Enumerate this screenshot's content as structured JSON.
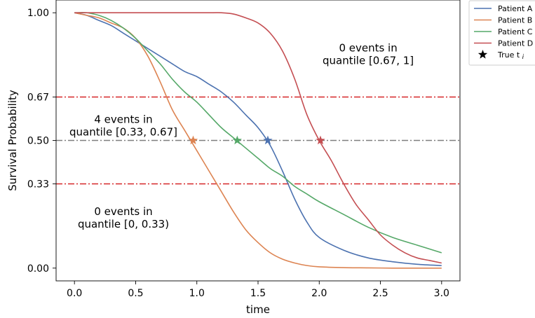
{
  "chart_data": {
    "type": "line",
    "xlabel": "time",
    "ylabel": "Survival Probability",
    "xlim": [
      -0.15,
      3.15
    ],
    "ylim": [
      -0.05,
      1.05
    ],
    "x_ticks": [
      "0.0",
      "0.5",
      "1.0",
      "1.5",
      "2.0",
      "2.5",
      "3.0"
    ],
    "y_ticks": [
      "0.00",
      "0.33",
      "0.50",
      "0.67",
      "1.00"
    ],
    "grid": false,
    "legend_position": "upper right, outside plot",
    "reference_lines": [
      {
        "y": 0.67,
        "color": "#d62728",
        "style": "dash-dot"
      },
      {
        "y": 0.5,
        "color": "#7f7f7f",
        "style": "dash-dot"
      },
      {
        "y": 0.33,
        "color": "#d62728",
        "style": "dash-dot"
      }
    ],
    "annotations": [
      {
        "line1": "0 events in",
        "line2": "quantile [0.67, 1]",
        "x": 2.4,
        "y": 0.84
      },
      {
        "line1": "4 events in",
        "line2": "quantile [0.33, 0.67]",
        "x": 0.4,
        "y": 0.56
      },
      {
        "line1": "0 events in",
        "line2": "quantile [0, 0.33)",
        "x": 0.4,
        "y": 0.2
      }
    ],
    "series": [
      {
        "name": "Patient A",
        "color": "#4c72b0",
        "x": [
          0,
          0.1,
          0.2,
          0.3,
          0.4,
          0.5,
          0.6,
          0.7,
          0.8,
          0.9,
          1.0,
          1.1,
          1.2,
          1.3,
          1.4,
          1.5,
          1.6,
          1.7,
          1.8,
          1.9,
          2.0,
          2.2,
          2.4,
          2.6,
          2.8,
          3.0
        ],
        "values": [
          1.0,
          0.99,
          0.97,
          0.95,
          0.92,
          0.89,
          0.86,
          0.83,
          0.8,
          0.77,
          0.75,
          0.72,
          0.69,
          0.65,
          0.6,
          0.55,
          0.48,
          0.38,
          0.27,
          0.18,
          0.12,
          0.07,
          0.04,
          0.025,
          0.015,
          0.01
        ],
        "true_t": 1.58,
        "true_s": 0.5
      },
      {
        "name": "Patient B",
        "color": "#dd8452",
        "x": [
          0,
          0.1,
          0.2,
          0.3,
          0.4,
          0.5,
          0.6,
          0.7,
          0.8,
          0.9,
          1.0,
          1.1,
          1.2,
          1.3,
          1.4,
          1.5,
          1.6,
          1.7,
          1.8,
          1.9,
          2.0,
          2.2,
          2.4,
          2.6,
          2.8,
          3.0
        ],
        "values": [
          1.0,
          0.99,
          0.98,
          0.96,
          0.94,
          0.9,
          0.83,
          0.73,
          0.62,
          0.54,
          0.46,
          0.38,
          0.3,
          0.22,
          0.15,
          0.1,
          0.06,
          0.035,
          0.02,
          0.01,
          0.005,
          0.002,
          0.001,
          0.0,
          0.0,
          0.0
        ],
        "true_t": 0.97,
        "true_s": 0.5
      },
      {
        "name": "Patient C",
        "color": "#55a868",
        "x": [
          0,
          0.1,
          0.2,
          0.3,
          0.4,
          0.5,
          0.6,
          0.7,
          0.8,
          0.9,
          1.0,
          1.1,
          1.2,
          1.3,
          1.4,
          1.5,
          1.6,
          1.7,
          1.8,
          1.9,
          2.0,
          2.2,
          2.4,
          2.6,
          2.8,
          3.0
        ],
        "values": [
          1.0,
          1.0,
          0.99,
          0.97,
          0.94,
          0.9,
          0.85,
          0.8,
          0.74,
          0.69,
          0.65,
          0.6,
          0.55,
          0.51,
          0.47,
          0.43,
          0.39,
          0.36,
          0.32,
          0.29,
          0.26,
          0.21,
          0.16,
          0.12,
          0.09,
          0.06
        ],
        "true_t": 1.33,
        "true_s": 0.5
      },
      {
        "name": "Patient D",
        "color": "#c44e52",
        "x": [
          0,
          0.2,
          0.4,
          0.6,
          0.8,
          1.0,
          1.1,
          1.2,
          1.3,
          1.4,
          1.5,
          1.6,
          1.7,
          1.8,
          1.9,
          2.0,
          2.1,
          2.2,
          2.3,
          2.4,
          2.5,
          2.6,
          2.7,
          2.8,
          2.9,
          3.0
        ],
        "values": [
          1.0,
          1.0,
          1.0,
          1.0,
          1.0,
          1.0,
          1.0,
          1.0,
          0.995,
          0.98,
          0.96,
          0.92,
          0.85,
          0.74,
          0.6,
          0.5,
          0.42,
          0.33,
          0.25,
          0.19,
          0.13,
          0.09,
          0.06,
          0.04,
          0.03,
          0.02
        ],
        "true_t": 2.01,
        "true_s": 0.5
      }
    ],
    "legend": [
      {
        "label": "Patient A",
        "color": "#4c72b0",
        "kind": "line"
      },
      {
        "label": "Patient B",
        "color": "#dd8452",
        "kind": "line"
      },
      {
        "label": "Patient C",
        "color": "#55a868",
        "kind": "line"
      },
      {
        "label": "Patient D",
        "color": "#c44e52",
        "kind": "line"
      },
      {
        "label": "True t",
        "sub": "i",
        "color": "#000000",
        "kind": "star"
      }
    ]
  }
}
